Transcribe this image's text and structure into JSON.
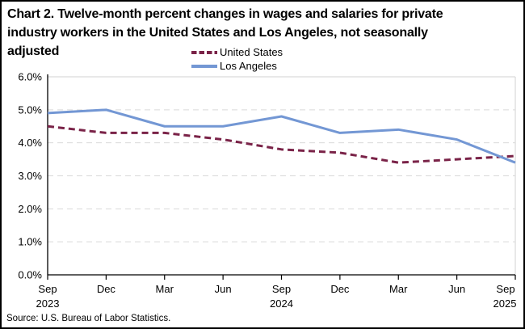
{
  "header": {
    "lines": [
      "Chart 2. Twelve-month percent changes in wages and salaries for private",
      "industry workers in the United States and Los Angeles, not seasonally",
      "adjusted"
    ]
  },
  "legend": [
    {
      "label": "United States",
      "color": "#7A2348",
      "style": "dashed"
    },
    {
      "label": "Los Angeles",
      "color": "#7397D4",
      "style": "solid"
    }
  ],
  "source": {
    "text": "Source: U.S. Bureau of Labor Statistics."
  },
  "chart_data": {
    "type": "line",
    "title": "Chart 2. Twelve-month percent changes in wages and salaries for private industry workers in the United States and Los Angeles, not seasonally adjusted",
    "categories": [
      "Sep",
      "Dec",
      "Mar",
      "Jun",
      "Sep",
      "Dec",
      "Mar",
      "Jun",
      "Sep"
    ],
    "category_years": [
      "2023",
      "",
      "",
      "",
      "2024",
      "",
      "",
      "",
      "2025"
    ],
    "series": [
      {
        "name": "United States",
        "color": "#7A2348",
        "dash": "dashed",
        "values": [
          4.5,
          4.3,
          4.3,
          4.1,
          3.8,
          3.7,
          3.4,
          3.5,
          3.6
        ]
      },
      {
        "name": "Los Angeles",
        "color": "#7397D4",
        "dash": "solid",
        "values": [
          4.9,
          5.0,
          4.5,
          4.5,
          4.8,
          4.3,
          4.4,
          4.1,
          3.4
        ]
      }
    ],
    "ylim": [
      0,
      6
    ],
    "ytick_step": 1.0,
    "ytick_labels": [
      "0.0%",
      "1.0%",
      "2.0%",
      "3.0%",
      "4.0%",
      "5.0%",
      "6.0%"
    ],
    "grid": "horizontal-dashed",
    "legend_position": "top",
    "units": "percent"
  }
}
